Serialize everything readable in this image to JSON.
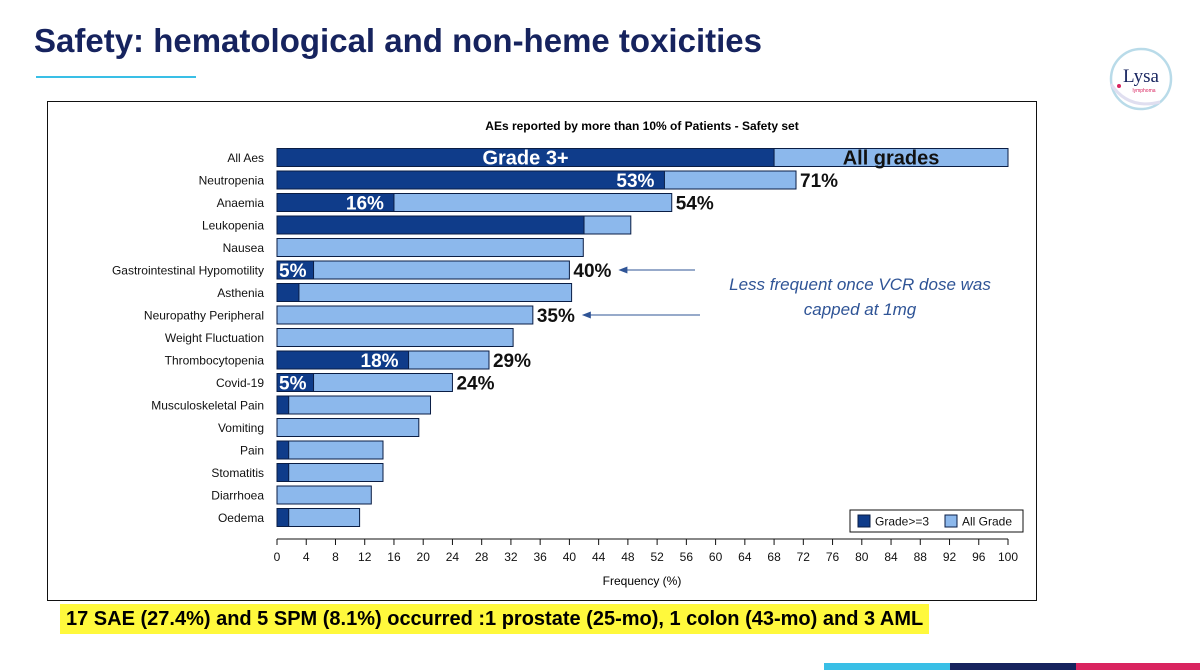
{
  "slide": {
    "title": "Safety: hematological and non-heme toxicities",
    "footer": "17 SAE (27.4%) and 5 SPM (8.1%) occurred :1 prostate (25-mo), 1 colon  (43-mo) and 3 AML",
    "logo_text": "Lysa",
    "logo_subtext": "lymphoma"
  },
  "annotation": {
    "line1": "Less frequent once VCR dose was",
    "line2": "capped at 1mg"
  },
  "colors": {
    "grade3": "#0f3c8a",
    "all_grade": "#8cb8ec",
    "title": "#16235e",
    "annotation": "#2f5496",
    "accent_cyan": "#39bfe6",
    "accent_navy": "#16235e",
    "accent_magenta": "#d9245f",
    "highlight": "#fff93c"
  },
  "chart_data": {
    "type": "bar",
    "orientation": "horizontal",
    "stacking": "overlay",
    "title": "AEs reported by more than 10% of Patients  - Safety set",
    "xlabel": "Frequency (%)",
    "ylabel": "",
    "xlim": [
      0,
      100
    ],
    "xticks": [
      0,
      4,
      8,
      12,
      16,
      20,
      24,
      28,
      32,
      36,
      40,
      44,
      48,
      52,
      56,
      60,
      64,
      68,
      72,
      76,
      80,
      84,
      88,
      92,
      96,
      100
    ],
    "grid": false,
    "legend_position": "bottom-right",
    "categories": [
      "All Aes",
      "Neutropenia",
      "Anaemia",
      "Leukopenia",
      "Nausea",
      "Gastrointestinal Hypomotility",
      "Asthenia",
      "Neuropathy Peripheral",
      "Weight Fluctuation",
      "Thrombocytopenia",
      "Covid-19",
      "Musculoskeletal Pain",
      "Vomiting",
      "Pain",
      "Stomatitis",
      "Diarrhoea",
      "Oedema"
    ],
    "series": [
      {
        "name": "Grade>=3",
        "values": [
          68,
          53,
          16,
          42,
          0,
          5,
          3,
          0,
          0,
          18,
          5,
          1.6,
          0,
          1.6,
          1.6,
          0,
          1.6
        ]
      },
      {
        "name": "All Grade",
        "values": [
          100,
          71,
          54,
          48.4,
          41.9,
          40,
          40.3,
          35,
          32.3,
          29,
          24,
          21,
          19.4,
          14.5,
          14.5,
          12.9,
          11.3
        ]
      }
    ],
    "in_bar_labels": [
      {
        "category": "All Aes",
        "series": "Grade>=3",
        "text": "Grade 3+"
      },
      {
        "category": "All Aes",
        "series": "All Grade",
        "text": "All grades"
      },
      {
        "category": "Neutropenia",
        "series": "Grade>=3",
        "text": "53%"
      },
      {
        "category": "Anaemia",
        "series": "Grade>=3",
        "text": "16%"
      },
      {
        "category": "Gastrointestinal Hypomotility",
        "series": "Grade>=3",
        "text": "5%"
      },
      {
        "category": "Thrombocytopenia",
        "series": "Grade>=3",
        "text": "18%"
      },
      {
        "category": "Covid-19",
        "series": "Grade>=3",
        "text": "5%"
      }
    ],
    "end_labels": [
      {
        "category": "Neutropenia",
        "text": "71%"
      },
      {
        "category": "Anaemia",
        "text": "54%"
      },
      {
        "category": "Gastrointestinal Hypomotility",
        "text": "40%"
      },
      {
        "category": "Neuropathy Peripheral",
        "text": "35%"
      },
      {
        "category": "Thrombocytopenia",
        "text": "29%"
      },
      {
        "category": "Covid-19",
        "text": "24%"
      }
    ],
    "arrows_to": [
      "Gastrointestinal Hypomotility",
      "Neuropathy Peripheral"
    ]
  }
}
